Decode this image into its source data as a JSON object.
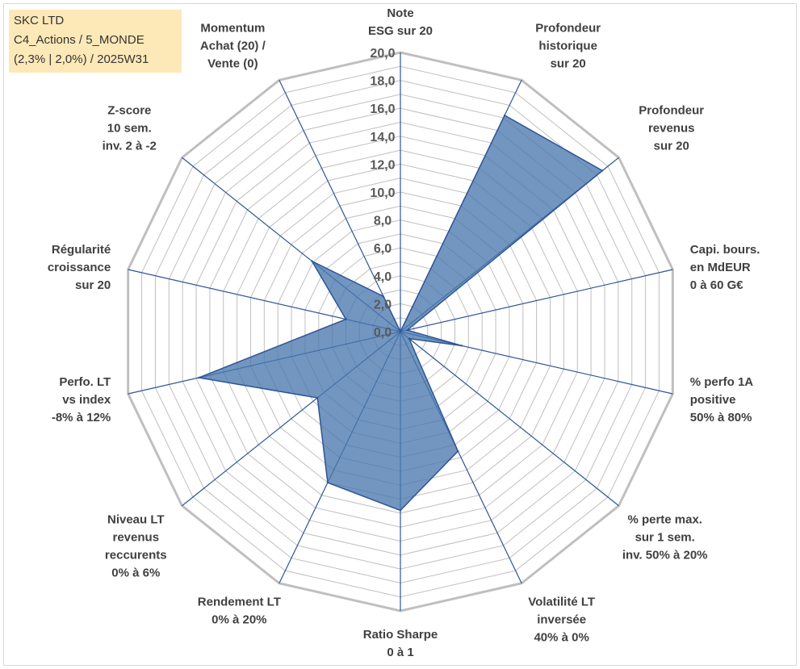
{
  "info_box": {
    "line1": "SKC LTD",
    "line2": "C4_Actions / 5_MONDE",
    "line3": "(2,3% | 2,0%) / 2025W31"
  },
  "chart_data": {
    "type": "radar",
    "rmin": 0,
    "rmax": 20,
    "tick_step": 2,
    "grid_step": 1,
    "tick_labels": [
      "0,0",
      "2,0",
      "4,0",
      "6,0",
      "8,0",
      "10,0",
      "12,0",
      "14,0",
      "16,0",
      "18,0",
      "20,0"
    ],
    "axes": [
      {
        "label": [
          "Note",
          "ESG sur 20"
        ],
        "value": 0
      },
      {
        "label": [
          "Profondeur",
          "historique",
          "sur 20"
        ],
        "value": 17.2
      },
      {
        "label": [
          "Profondeur",
          "revenus",
          "sur 20"
        ],
        "value": 18.5
      },
      {
        "label": [
          "Capi. bours.",
          "en MdEUR",
          "0 à 60 G€"
        ],
        "value": 0.5
      },
      {
        "label": [
          "% perfo 1A",
          "positive",
          "50% à 80%"
        ],
        "value": 4.5
      },
      {
        "label": [
          "% perte max.",
          "sur 1 sem.",
          "inv. 50% à 20%"
        ],
        "value": 0.8
      },
      {
        "label": [
          "Volatilité LT",
          "inversée",
          "40% à 0%"
        ],
        "value": 9.5
      },
      {
        "label": [
          "Ratio Sharpe",
          "0 à 1"
        ],
        "value": 12.8
      },
      {
        "label": [
          "Rendement LT",
          "0% à 20%"
        ],
        "value": 12.0
      },
      {
        "label": [
          "Niveau LT",
          "revenus",
          "reccurents",
          "0% à 6%"
        ],
        "value": 7.6
      },
      {
        "label": [
          "Perfo. LT",
          "vs index",
          "-8% à 12%"
        ],
        "value": 14.8
      },
      {
        "label": [
          "Régularité",
          "croissance",
          "sur 20"
        ],
        "value": 4.0
      },
      {
        "label": [
          "Z-score",
          "10 sem.",
          "inv. 2 à -2"
        ],
        "value": 8.1
      },
      {
        "label": [
          "Momentum",
          "Achat (20) /",
          "Vente (0)"
        ],
        "value": 2.8
      }
    ],
    "colors": {
      "fill": "#4a78ad",
      "stroke": "#2f5597",
      "grid": "#bfbfbf",
      "spoke": "#2f5597"
    }
  }
}
